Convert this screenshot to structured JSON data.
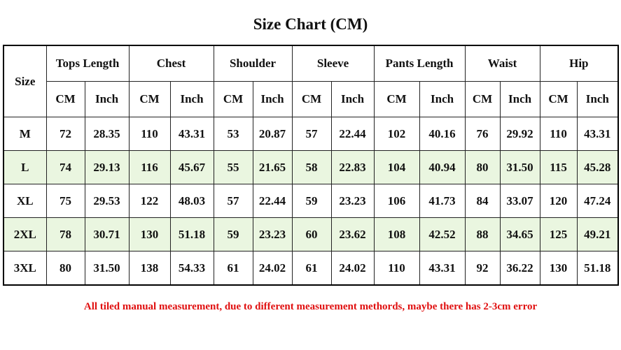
{
  "title": "Size Chart (CM)",
  "table": {
    "size_header": "Size",
    "groups": [
      "Tops Length",
      "Chest",
      "Shoulder",
      "Sleeve",
      "Pants Length",
      "Waist",
      "Hip"
    ],
    "units": [
      "CM",
      "Inch",
      "CM",
      "Inch",
      "CM",
      "Inch",
      "CM",
      "Inch",
      "CM",
      "Inch",
      "CM",
      "Inch",
      "CM",
      "Inch"
    ],
    "rows": [
      [
        "M",
        "72",
        "28.35",
        "110",
        "43.31",
        "53",
        "20.87",
        "57",
        "22.44",
        "102",
        "40.16",
        "76",
        "29.92",
        "110",
        "43.31"
      ],
      [
        "L",
        "74",
        "29.13",
        "116",
        "45.67",
        "55",
        "21.65",
        "58",
        "22.83",
        "104",
        "40.94",
        "80",
        "31.50",
        "115",
        "45.28"
      ],
      [
        "XL",
        "75",
        "29.53",
        "122",
        "48.03",
        "57",
        "22.44",
        "59",
        "23.23",
        "106",
        "41.73",
        "84",
        "33.07",
        "120",
        "47.24"
      ],
      [
        "2XL",
        "78",
        "30.71",
        "130",
        "51.18",
        "59",
        "23.23",
        "60",
        "23.62",
        "108",
        "42.52",
        "88",
        "34.65",
        "125",
        "49.21"
      ],
      [
        "3XL",
        "80",
        "31.50",
        "138",
        "54.33",
        "61",
        "24.02",
        "61",
        "24.02",
        "110",
        "43.31",
        "92",
        "36.22",
        "130",
        "51.18"
      ]
    ]
  },
  "note": "All tiled manual measurement, due to different measurement methords, maybe there has 2-3cm error"
}
